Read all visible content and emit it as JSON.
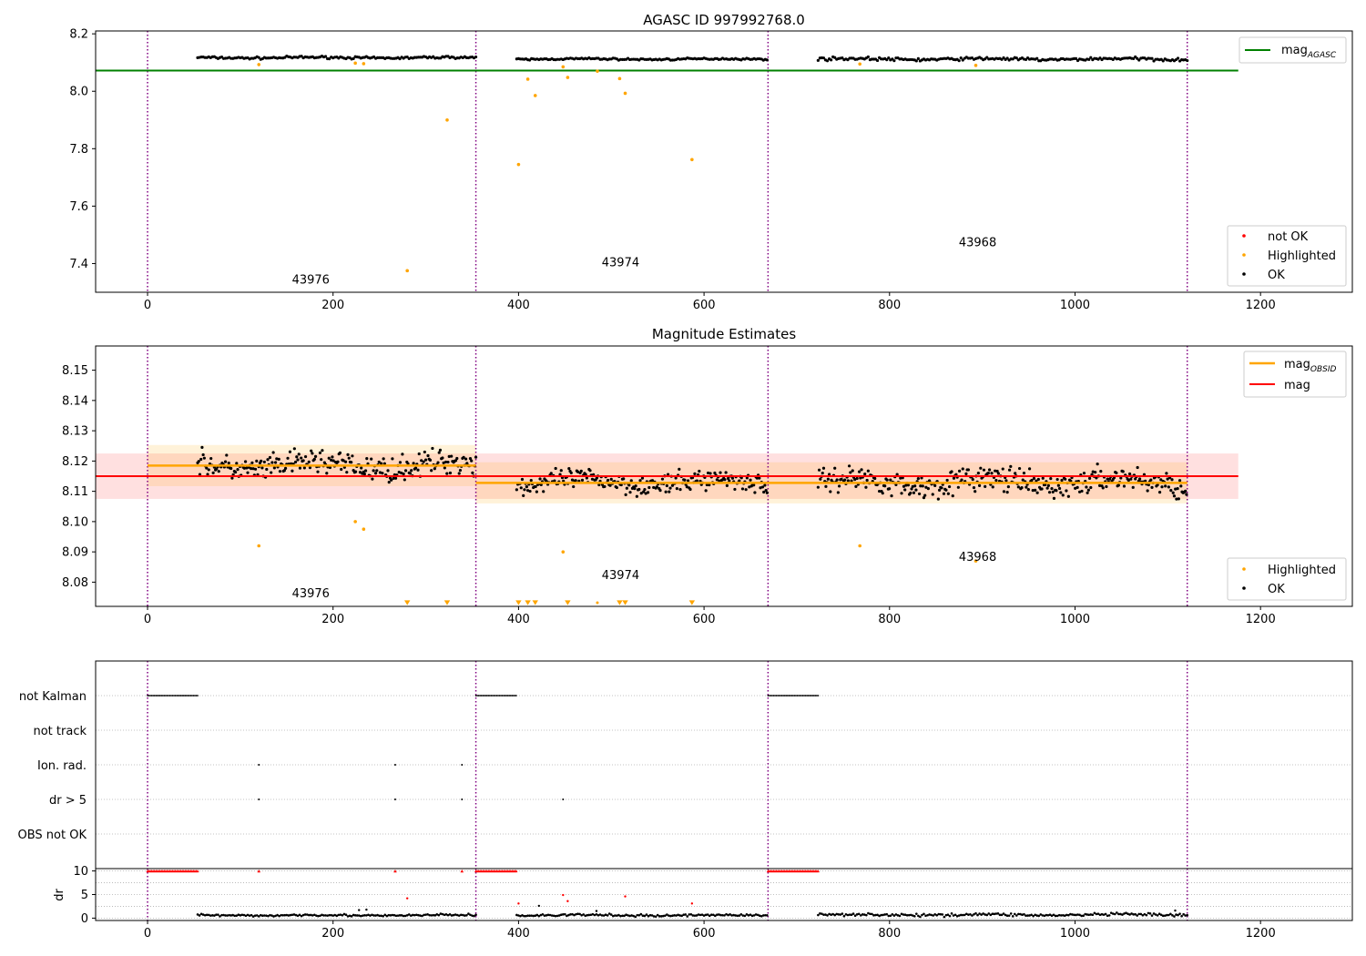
{
  "chart_data": [
    {
      "type": "scatter",
      "title": "AGASC ID 997992768.0",
      "xlabel": "",
      "ylabel": "",
      "xlim": [
        -56,
        1299
      ],
      "ylim": [
        7.3,
        8.21
      ],
      "xticks": [
        0,
        200,
        400,
        600,
        800,
        1000,
        1200
      ],
      "yticks": [
        7.4,
        7.6,
        7.8,
        8.0,
        8.2
      ],
      "ytick_labels": [
        "7.4",
        "7.6",
        "7.8",
        "8.0",
        "8.2"
      ],
      "obs_boundaries": [
        0,
        354,
        669,
        1121
      ],
      "obs_labels": [
        {
          "text": "43976",
          "x": 176,
          "y": 7.33
        },
        {
          "text": "43974",
          "x": 510,
          "y": 7.39
        },
        {
          "text": "43968",
          "x": 895,
          "y": 7.46
        }
      ],
      "ok_segments": [
        {
          "x": [
            54,
            354
          ],
          "mid": 8.117,
          "amp": 0.006,
          "step": 2
        },
        {
          "x": [
            398,
            669
          ],
          "mid": 8.112,
          "amp": 0.005,
          "step": 2
        },
        {
          "x": [
            723,
            1121
          ],
          "mid": 8.112,
          "amp": 0.008,
          "step": 2
        }
      ],
      "highlighted_x": [
        120,
        224,
        233,
        280,
        323,
        400,
        410,
        418,
        448,
        453,
        485,
        509,
        515,
        587,
        768,
        893
      ],
      "highlighted_y": [
        8.093,
        8.098,
        8.096,
        7.375,
        7.9,
        7.745,
        8.042,
        7.985,
        8.085,
        8.048,
        8.07,
        8.044,
        7.993,
        7.762,
        8.095,
        8.09
      ],
      "reference_line": {
        "name": "mag_AGASC",
        "y": 8.072,
        "x": [
          -56,
          1176
        ],
        "color": "#008000"
      },
      "legend_lines": [
        {
          "name_main": "mag",
          "name_sub": "AGASC",
          "color": "#008000"
        }
      ],
      "legend_points": [
        {
          "name": "not OK",
          "color": "#ff0000"
        },
        {
          "name": "Highlighted",
          "color": "#ffa500"
        },
        {
          "name": "OK",
          "color": "#000000"
        }
      ]
    },
    {
      "type": "scatter",
      "title": "Magnitude Estimates",
      "xlabel": "",
      "ylabel": "",
      "xlim": [
        -56,
        1299
      ],
      "ylim": [
        8.072,
        8.158
      ],
      "xticks": [
        0,
        200,
        400,
        600,
        800,
        1000,
        1200
      ],
      "yticks": [
        8.08,
        8.09,
        8.1,
        8.11,
        8.12,
        8.13,
        8.14,
        8.15
      ],
      "ytick_labels": [
        "8.08",
        "8.09",
        "8.10",
        "8.11",
        "8.12",
        "8.13",
        "8.14",
        "8.15"
      ],
      "obs_boundaries": [
        0,
        354,
        669,
        1121
      ],
      "obs_labels": [
        {
          "text": "43976",
          "x": 176,
          "y": 8.075
        },
        {
          "text": "43974",
          "x": 510,
          "y": 8.081
        },
        {
          "text": "43968",
          "x": 895,
          "y": 8.087
        }
      ],
      "ok_segments": [
        {
          "x": [
            54,
            354
          ],
          "mid": 8.1185,
          "amp": 0.006,
          "step": 1.2
        },
        {
          "x": [
            398,
            669
          ],
          "mid": 8.113,
          "amp": 0.005,
          "step": 1.2
        },
        {
          "x": [
            723,
            1121
          ],
          "mid": 8.113,
          "amp": 0.006,
          "step": 1.2
        }
      ],
      "highlighted_x": [
        120,
        224,
        233,
        448,
        768,
        893
      ],
      "highlighted_y": [
        8.092,
        8.1,
        8.0975,
        8.09,
        8.092,
        8.087
      ],
      "offscale_x": [
        280,
        323,
        400,
        410,
        418,
        453,
        509,
        515,
        587
      ],
      "offscale_small_x": [
        485
      ],
      "mag_line": {
        "name": "mag",
        "y": 8.115,
        "err": 0.0075,
        "x": [
          -56,
          1176
        ],
        "color": "#ff0000"
      },
      "obsid_mags": [
        {
          "x": [
            0,
            354
          ],
          "y": 8.1185,
          "err": 0.0068
        },
        {
          "x": [
            354,
            1121
          ],
          "y": 8.1128,
          "err": 0.0068
        }
      ],
      "legend_lines": [
        {
          "name_main": "mag",
          "name_sub": "OBSID",
          "color": "#ffa500"
        },
        {
          "name_main": "mag",
          "name_sub": "",
          "color": "#ff0000"
        }
      ],
      "legend_points": [
        {
          "name": "Highlighted",
          "color": "#ffa500"
        },
        {
          "name": "OK",
          "color": "#000000"
        }
      ]
    },
    {
      "type": "scatter",
      "title": "",
      "xlim": [
        -56,
        1299
      ],
      "categories": [
        "not Kalman",
        "not track",
        "Ion. rad.",
        "dr > 5",
        "OBS not OK"
      ],
      "obs_boundaries": [
        0,
        354,
        669,
        1121
      ],
      "flags": {
        "not Kalman": [
          [
            0,
            54
          ],
          [
            354,
            398
          ],
          [
            669,
            723
          ]
        ],
        "not track": [],
        "Ion. rad.": [
          120,
          267,
          339
        ],
        "dr > 5": [
          120,
          267,
          339,
          448
        ],
        "OBS not OK": []
      }
    },
    {
      "type": "scatter",
      "title": "",
      "xlabel": "",
      "ylabel": "dr",
      "xlim": [
        -56,
        1299
      ],
      "ylim": [
        -0.5,
        10.5
      ],
      "xticks": [
        0,
        200,
        400,
        600,
        800,
        1000,
        1200
      ],
      "yticks": [
        0,
        5,
        10
      ],
      "ytick_labels": [
        "0",
        "5",
        "10"
      ],
      "obs_boundaries": [
        0,
        354,
        669,
        1121
      ],
      "saturated_segments": [
        [
          0,
          54
        ],
        [
          354,
          398
        ],
        [
          669,
          723
        ]
      ],
      "saturated_points": [
        120,
        267,
        339
      ],
      "red_points_x": [
        280,
        400,
        448,
        453,
        515,
        587
      ],
      "red_points_y": [
        4.2,
        3.1,
        4.9,
        3.6,
        4.6,
        3.1
      ],
      "ok_segments": [
        {
          "x": [
            54,
            354
          ],
          "mid": 0.6,
          "amp": 0.35,
          "step": 2
        },
        {
          "x": [
            398,
            669
          ],
          "mid": 0.6,
          "amp": 0.35,
          "step": 2
        },
        {
          "x": [
            723,
            1121
          ],
          "mid": 0.7,
          "amp": 0.45,
          "step": 2
        }
      ],
      "ok_extra_x": [
        228,
        236,
        422,
        484,
        1108
      ],
      "ok_extra_y": [
        1.7,
        1.8,
        2.6,
        1.5,
        1.6
      ]
    }
  ]
}
